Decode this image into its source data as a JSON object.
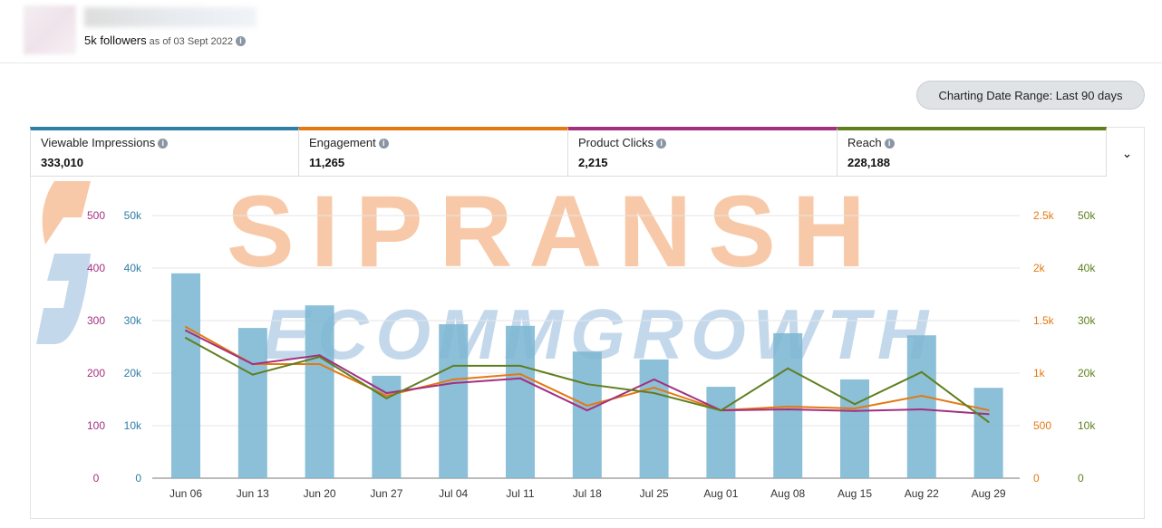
{
  "profile": {
    "followers": "5k followers",
    "as_of": "as of 03 Sept 2022"
  },
  "date_range_button": "Charting Date Range: Last 90 days",
  "metrics": [
    {
      "label": "Viewable Impressions",
      "value": "333,010",
      "color": "#2e7ea6"
    },
    {
      "label": "Engagement",
      "value": "11,265",
      "color": "#e47911"
    },
    {
      "label": "Product Clicks",
      "value": "2,215",
      "color": "#a3307f"
    },
    {
      "label": "Reach",
      "value": "228,188",
      "color": "#5f7f1e"
    }
  ],
  "watermark": {
    "line1": "SIPRANSH",
    "line2": "ECOMMGROWTH"
  },
  "chart_data": {
    "type": "bar+line",
    "categories": [
      "Jun 06",
      "Jun 13",
      "Jun 20",
      "Jun 27",
      "Jul 04",
      "Jul 11",
      "Jul 18",
      "Jul 25",
      "Aug 01",
      "Aug 08",
      "Aug 15",
      "Aug 22",
      "Aug 29"
    ],
    "axes": {
      "product_clicks": {
        "side": "left",
        "ticks": [
          "0",
          "100",
          "200",
          "300",
          "400",
          "500"
        ],
        "max": 500,
        "color": "#a3307f"
      },
      "impressions": {
        "side": "left",
        "ticks": [
          "0",
          "10k",
          "20k",
          "30k",
          "40k",
          "50k"
        ],
        "max": 50000,
        "color": "#2e7ea6"
      },
      "engagement": {
        "side": "right",
        "ticks": [
          "0",
          "500",
          "1k",
          "1.5k",
          "2k",
          "2.5k"
        ],
        "max": 2500,
        "color": "#e47911"
      },
      "reach": {
        "side": "right",
        "ticks": [
          "0",
          "10k",
          "20k",
          "30k",
          "40k",
          "50k"
        ],
        "max": 50000,
        "color": "#5f7f1e"
      }
    },
    "series": [
      {
        "name": "Viewable Impressions",
        "type": "bar",
        "axis": "impressions",
        "color": "#7fb8d4",
        "values": [
          39000,
          28600,
          32900,
          19500,
          29300,
          29000,
          24100,
          22600,
          17400,
          27600,
          18800,
          27200,
          17200
        ]
      },
      {
        "name": "Engagement",
        "type": "line",
        "axis": "engagement",
        "color": "#e47911",
        "values": [
          1440,
          1086,
          1086,
          784,
          940,
          991,
          690,
          862,
          647,
          681,
          664,
          784,
          647
        ]
      },
      {
        "name": "Product Clicks",
        "type": "line",
        "axis": "product_clicks",
        "color": "#a3307f",
        "values": [
          281,
          217,
          234,
          162,
          181,
          190,
          129,
          188,
          129,
          131,
          128,
          131,
          122
        ]
      },
      {
        "name": "Reach",
        "type": "line",
        "axis": "reach",
        "color": "#5f7f1e",
        "values": [
          26700,
          19700,
          23100,
          15200,
          21400,
          21400,
          17900,
          16200,
          12900,
          20900,
          14100,
          20200,
          10700
        ]
      }
    ],
    "grid": true
  }
}
